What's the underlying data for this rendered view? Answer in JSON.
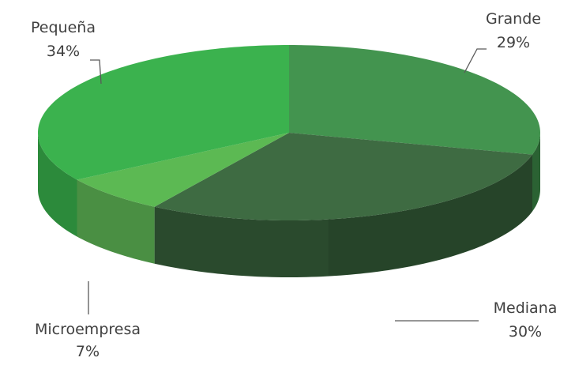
{
  "chart_data": {
    "type": "pie",
    "style": "3d",
    "categories": [
      "Grande",
      "Mediana",
      "Microempresa",
      "Pequeña"
    ],
    "values": [
      29,
      30,
      7,
      34
    ],
    "value_labels": [
      "29%",
      "30%",
      "7%",
      "34%"
    ],
    "colors": [
      "#43944f",
      "#3e6b42",
      "#5cb953",
      "#3bb24e"
    ],
    "side_colors": [
      "#2f6b38",
      "#2a4a2d",
      "#4a8f43",
      "#2c8a3b"
    ],
    "legend": "none",
    "data_labels": "outside with leader lines"
  }
}
